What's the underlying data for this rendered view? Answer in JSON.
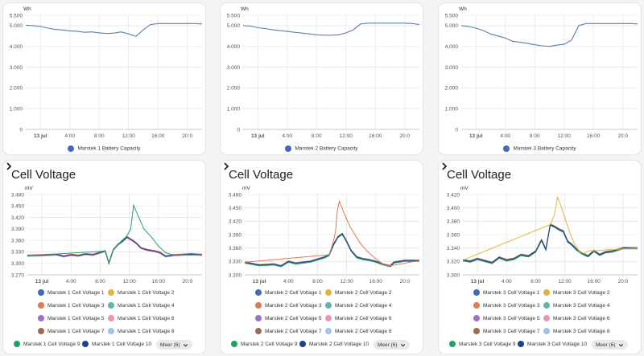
{
  "colors": {
    "battery_line": "#5b7db4",
    "cells": [
      "#4267c2",
      "#e2b53a",
      "#e27754",
      "#62b5a8",
      "#9f6fd1",
      "#f090bb",
      "#9b6d54",
      "#9fc1eb",
      "#1fa166",
      "#223f92"
    ],
    "grid": "#e6e6e6",
    "axis_text": "#555555"
  },
  "battery_charts": [
    {
      "unit": "Wh",
      "y_ticks": [
        "5.500",
        "5.000",
        "4.000",
        "3.000",
        "2.000",
        "1.000",
        "0"
      ],
      "x_ticks": [
        "13 jul",
        "4:00",
        "8:00",
        "12:00",
        "16:00",
        "20:0"
      ],
      "legend": "Marstek 1 Battery Capacity",
      "series": [
        [
          0,
          5020
        ],
        [
          1,
          5000
        ],
        [
          2,
          4960
        ],
        [
          3,
          4880
        ],
        [
          4,
          4820
        ],
        [
          5,
          4790
        ],
        [
          6,
          4750
        ],
        [
          7,
          4730
        ],
        [
          8,
          4680
        ],
        [
          9,
          4700
        ],
        [
          10,
          4650
        ],
        [
          11,
          4620
        ],
        [
          12,
          4640
        ],
        [
          13,
          4700
        ],
        [
          14,
          4600
        ],
        [
          15,
          4480
        ],
        [
          16,
          4800
        ],
        [
          17,
          5050
        ],
        [
          18,
          5100
        ],
        [
          19,
          5100
        ],
        [
          20,
          5100
        ],
        [
          21,
          5100
        ],
        [
          22,
          5100
        ],
        [
          23,
          5100
        ],
        [
          24,
          5080
        ]
      ]
    },
    {
      "unit": "Wh",
      "y_ticks": [
        "5.500",
        "5.000",
        "4.000",
        "3.000",
        "2.000",
        "1.000",
        "0"
      ],
      "x_ticks": [
        "13 jul",
        "4:00",
        "8:00",
        "12:00",
        "16:00",
        "20:0"
      ],
      "legend": "Marstek 2 Battery Capacity",
      "series": [
        [
          0,
          5000
        ],
        [
          1,
          4980
        ],
        [
          2,
          4900
        ],
        [
          3,
          4860
        ],
        [
          4,
          4800
        ],
        [
          5,
          4760
        ],
        [
          6,
          4720
        ],
        [
          7,
          4680
        ],
        [
          8,
          4640
        ],
        [
          9,
          4600
        ],
        [
          10,
          4560
        ],
        [
          11,
          4540
        ],
        [
          12,
          4540
        ],
        [
          13,
          4560
        ],
        [
          14,
          4650
        ],
        [
          15,
          4800
        ],
        [
          16,
          5080
        ],
        [
          17,
          5120
        ],
        [
          18,
          5120
        ],
        [
          19,
          5120
        ],
        [
          20,
          5120
        ],
        [
          21,
          5120
        ],
        [
          22,
          5120
        ],
        [
          23,
          5100
        ],
        [
          24,
          5050
        ]
      ]
    },
    {
      "unit": "Wh",
      "y_ticks": [
        "5.500",
        "5.000",
        "4.000",
        "3.000",
        "2.000",
        "1.000",
        "0"
      ],
      "x_ticks": [
        "13 jul",
        "4:00",
        "8:00",
        "12:00",
        "16:00",
        "20:0"
      ],
      "legend": "Marstek 3 Battery Capacity",
      "series": [
        [
          0,
          5000
        ],
        [
          1,
          4960
        ],
        [
          2,
          4880
        ],
        [
          3,
          4760
        ],
        [
          4,
          4600
        ],
        [
          5,
          4500
        ],
        [
          6,
          4400
        ],
        [
          7,
          4250
        ],
        [
          8,
          4200
        ],
        [
          9,
          4150
        ],
        [
          10,
          4080
        ],
        [
          11,
          4030
        ],
        [
          12,
          4000
        ],
        [
          13,
          4060
        ],
        [
          14,
          4100
        ],
        [
          15,
          4300
        ],
        [
          16,
          5000
        ],
        [
          17,
          5100
        ],
        [
          18,
          5100
        ],
        [
          19,
          5100
        ],
        [
          20,
          5100
        ],
        [
          21,
          5100
        ],
        [
          22,
          5100
        ],
        [
          23,
          5100
        ],
        [
          24,
          5080
        ]
      ]
    }
  ],
  "cell_charts": [
    {
      "title": "Cell Voltage",
      "unit": "mV",
      "y_ticks": [
        "3.480",
        "3.450",
        "3.420",
        "3.390",
        "3.360",
        "3.330",
        "3.300",
        "3.270"
      ],
      "x_ticks": [
        "13 jul",
        "4:00",
        "8:00",
        "12:00",
        "16:00",
        "20:0"
      ],
      "legend": [
        "Marstek 1 Cell Voltage 1",
        "Marstek 1 Cell Voltage 2",
        "Marstek 1 Cell Voltage 3",
        "Marstek 1 Cell Voltage 4",
        "Marstek 1 Cell Voltage 5",
        "Marstek 1 Cell Voltage 6",
        "Marstek 1 Cell Voltage 7",
        "Marstek 1 Cell Voltage 8",
        "Marstek 1 Cell Voltage 9",
        "Marstek 1 Cell Voltage 10"
      ],
      "more_label": "Meer (6)",
      "base_series": [
        [
          0,
          3320
        ],
        [
          2,
          3321
        ],
        [
          4,
          3323
        ],
        [
          5,
          3318
        ],
        [
          6,
          3322
        ],
        [
          7,
          3320
        ],
        [
          8,
          3324
        ],
        [
          9,
          3322
        ],
        [
          10,
          3328
        ],
        [
          10.7,
          3332
        ],
        [
          11.2,
          3300
        ],
        [
          11.8,
          3335
        ],
        [
          12.4,
          3348
        ],
        [
          13.1,
          3358
        ],
        [
          13.7,
          3368
        ],
        [
          14.4,
          3360
        ],
        [
          15.0,
          3352
        ],
        [
          15.6,
          3340
        ],
        [
          16.4,
          3335
        ],
        [
          17.4,
          3332
        ],
        [
          18.2,
          3328
        ],
        [
          19.0,
          3318
        ],
        [
          20.0,
          3321
        ],
        [
          21.0,
          3322
        ],
        [
          22.5,
          3324
        ],
        [
          24,
          3322
        ]
      ],
      "peak_series": [
        [
          0,
          3320
        ],
        [
          10.7,
          3332
        ],
        [
          11.2,
          3300
        ],
        [
          11.8,
          3335
        ],
        [
          12.4,
          3348
        ],
        [
          13.0,
          3360
        ],
        [
          13.6,
          3370
        ],
        [
          14.2,
          3390
        ],
        [
          14.6,
          3452
        ],
        [
          15.2,
          3425
        ],
        [
          16.0,
          3390
        ],
        [
          17.0,
          3370
        ],
        [
          18.0,
          3345
        ],
        [
          19.0,
          3328
        ],
        [
          20.0,
          3322
        ],
        [
          24,
          3322
        ]
      ]
    },
    {
      "title": "Cell Voltage",
      "unit": "mV",
      "y_ticks": [
        "3.480",
        "3.450",
        "3.420",
        "3.390",
        "3.360",
        "3.330",
        "3.300"
      ],
      "x_ticks": [
        "13 jul",
        "4:00",
        "8:00",
        "12:00",
        "16:00",
        "20:0"
      ],
      "legend": [
        "Marstek 2 Cell Voltage 1",
        "Marstek 2 Cell Voltage 2",
        "Marstek 2 Cell Voltage 3",
        "Marstek 2 Cell Voltage 4",
        "Marstek 2 Cell Voltage 5",
        "Marstek 2 Cell Voltage 6",
        "Marstek 2 Cell Voltage 7",
        "Marstek 2 Cell Voltage 8",
        "Marstek 2 Cell Voltage 9",
        "Marstek 2 Cell Voltage 10"
      ],
      "more_label": "Meer (6)",
      "base_series": [
        [
          0,
          3328
        ],
        [
          2,
          3322
        ],
        [
          4,
          3324
        ],
        [
          5,
          3320
        ],
        [
          6,
          3330
        ],
        [
          7,
          3326
        ],
        [
          8,
          3328
        ],
        [
          9,
          3330
        ],
        [
          10,
          3335
        ],
        [
          11,
          3340
        ],
        [
          11.6,
          3345
        ],
        [
          12.2,
          3368
        ],
        [
          12.8,
          3385
        ],
        [
          13.4,
          3392
        ],
        [
          14.0,
          3375
        ],
        [
          14.6,
          3355
        ],
        [
          15.4,
          3340
        ],
        [
          16.2,
          3336
        ],
        [
          17.0,
          3334
        ],
        [
          18.0,
          3330
        ],
        [
          19.0,
          3324
        ],
        [
          20.0,
          3320
        ],
        [
          20.5,
          3328
        ],
        [
          22,
          3332
        ],
        [
          24,
          3332
        ]
      ],
      "peak_series": [
        [
          0,
          3328
        ],
        [
          11.6,
          3345
        ],
        [
          12.2,
          3375
        ],
        [
          12.5,
          3400
        ],
        [
          12.7,
          3440
        ],
        [
          13.0,
          3465
        ],
        [
          13.6,
          3440
        ],
        [
          14.4,
          3410
        ],
        [
          15.2,
          3388
        ],
        [
          16.0,
          3368
        ],
        [
          17.0,
          3350
        ],
        [
          18.0,
          3336
        ],
        [
          19.0,
          3324
        ],
        [
          20.0,
          3320
        ],
        [
          24,
          3332
        ]
      ]
    },
    {
      "title": "Cell Voltage",
      "unit": "mV",
      "y_ticks": [
        "3.420",
        "3.400",
        "3.380",
        "3.360",
        "3.340",
        "3.320",
        "3.300"
      ],
      "x_ticks": [
        "13 jul",
        "4:00",
        "8:00",
        "12:00",
        "16:00",
        "20:0"
      ],
      "legend": [
        "Marstek 3 Cell Voltage 1",
        "Marstek 3 Cell Voltage 2",
        "Marstek 3 Cell Voltage 3",
        "Marstek 3 Cell Voltage 4",
        "Marstek 3 Cell Voltage 5",
        "Marstek 3 Cell Voltage 6",
        "Marstek 3 Cell Voltage 7",
        "Marstek 3 Cell Voltage 8",
        "Marstek 3 Cell Voltage 9",
        "Marstek 3 Cell Voltage 10"
      ],
      "more_label": "Meer (6)",
      "base_series": [
        [
          0,
          3322
        ],
        [
          1,
          3320
        ],
        [
          2,
          3324
        ],
        [
          3,
          3321
        ],
        [
          4,
          3318
        ],
        [
          5,
          3326
        ],
        [
          6,
          3322
        ],
        [
          7,
          3324
        ],
        [
          8,
          3330
        ],
        [
          9,
          3328
        ],
        [
          10,
          3335
        ],
        [
          10.8,
          3352
        ],
        [
          11.4,
          3338
        ],
        [
          12.0,
          3375
        ],
        [
          12.6,
          3372
        ],
        [
          13.2,
          3368
        ],
        [
          13.8,
          3365
        ],
        [
          14.4,
          3350
        ],
        [
          15.0,
          3345
        ],
        [
          15.6,
          3338
        ],
        [
          16.4,
          3332
        ],
        [
          17.2,
          3328
        ],
        [
          18.0,
          3336
        ],
        [
          18.8,
          3330
        ],
        [
          19.6,
          3334
        ],
        [
          20.5,
          3335
        ],
        [
          22,
          3340
        ],
        [
          24,
          3340
        ]
      ],
      "peak_series": [
        [
          0,
          3322
        ],
        [
          12.0,
          3375
        ],
        [
          12.6,
          3390
        ],
        [
          13.0,
          3416
        ],
        [
          13.4,
          3405
        ],
        [
          14.0,
          3385
        ],
        [
          14.8,
          3360
        ],
        [
          15.4,
          3345
        ],
        [
          16.0,
          3335
        ],
        [
          16.6,
          3332
        ],
        [
          17.4,
          3336
        ],
        [
          18.0,
          3336
        ],
        [
          24,
          3340
        ]
      ]
    }
  ]
}
